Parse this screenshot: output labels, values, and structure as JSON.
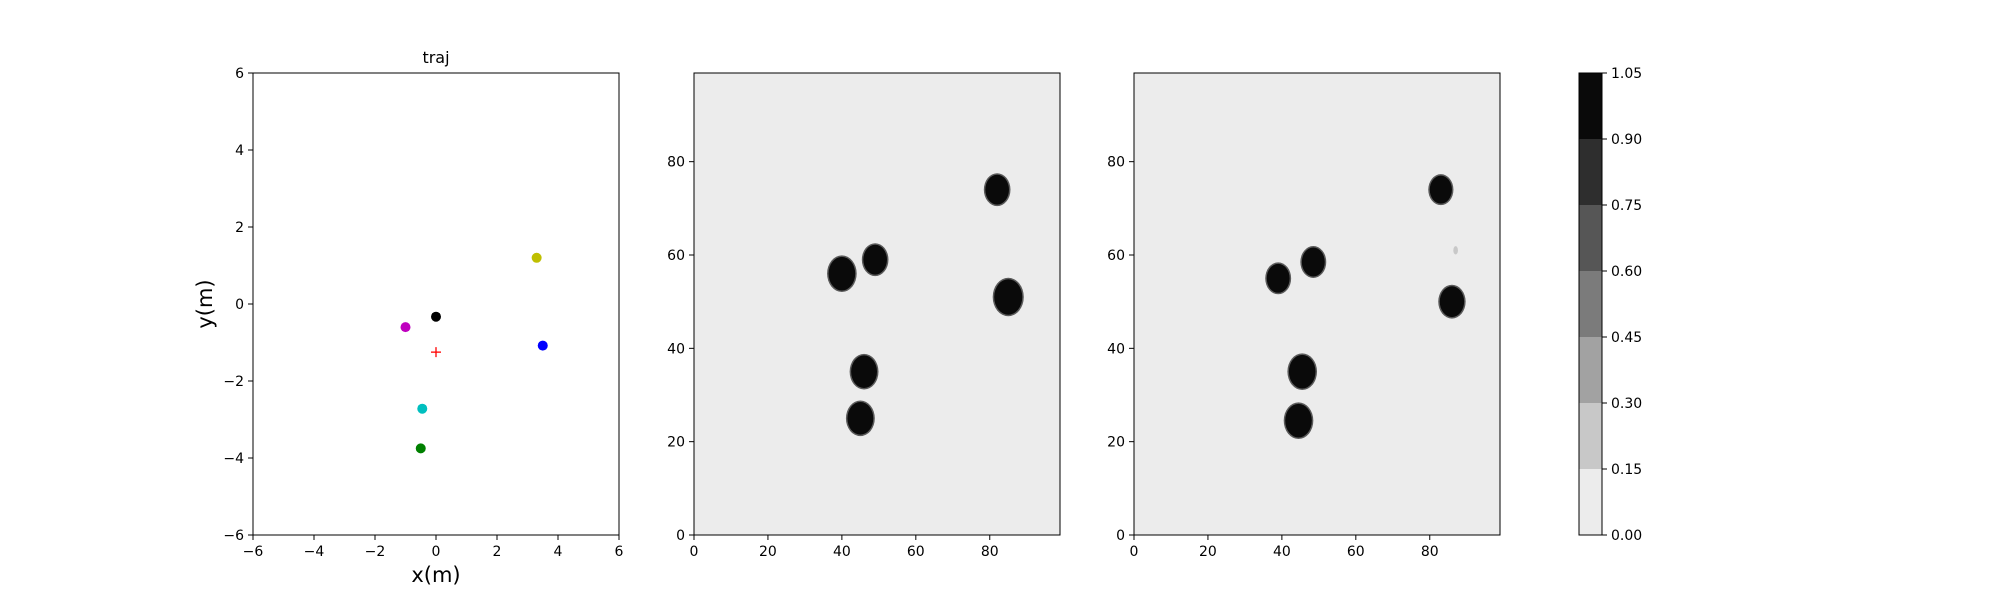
{
  "chart_data": [
    {
      "type": "scatter",
      "title": "traj",
      "xlabel": "x(m)",
      "ylabel": "y(m)",
      "xlim": [
        -6,
        6
      ],
      "ylim": [
        -6,
        6
      ],
      "xticks": [
        "−6",
        "−4",
        "−2",
        "0",
        "2",
        "4",
        "6"
      ],
      "yticks": [
        "−6",
        "−4",
        "−2",
        "0",
        "2",
        "4",
        "6"
      ],
      "grid": false,
      "points": [
        {
          "x": 3.3,
          "y": 1.2,
          "color": "#bfbf00",
          "marker": "circle"
        },
        {
          "x": 0.0,
          "y": -0.33,
          "color": "#000000",
          "marker": "circle"
        },
        {
          "x": -1.0,
          "y": -0.6,
          "color": "#bf00bf",
          "marker": "circle"
        },
        {
          "x": 3.5,
          "y": -1.08,
          "color": "#0000ff",
          "marker": "circle"
        },
        {
          "x": -0.45,
          "y": -2.72,
          "color": "#00bfbf",
          "marker": "circle"
        },
        {
          "x": -0.5,
          "y": -3.75,
          "color": "#008000",
          "marker": "circle"
        }
      ],
      "crosses": [
        {
          "x": 0.0,
          "y": -1.25,
          "color": "#ff0000",
          "marker": "plus"
        }
      ]
    },
    {
      "type": "heatmap",
      "xlim": [
        0,
        99
      ],
      "ylim": [
        0,
        99
      ],
      "xticks": [
        "0",
        "20",
        "40",
        "60",
        "80"
      ],
      "yticks": [
        "0",
        "20",
        "40",
        "60",
        "80"
      ],
      "background_value": 0.0,
      "blobs": [
        {
          "x": 40,
          "y": 56,
          "r": 3.6,
          "value": 1.0
        },
        {
          "x": 49,
          "y": 59,
          "r": 3.2,
          "value": 1.0
        },
        {
          "x": 82,
          "y": 74,
          "r": 3.2,
          "value": 1.0
        },
        {
          "x": 85,
          "y": 51,
          "r": 3.8,
          "value": 1.0
        },
        {
          "x": 46,
          "y": 35,
          "r": 3.5,
          "value": 1.0
        },
        {
          "x": 45,
          "y": 25,
          "r": 3.5,
          "value": 1.0
        }
      ]
    },
    {
      "type": "heatmap",
      "xlim": [
        0,
        99
      ],
      "ylim": [
        0,
        99
      ],
      "xticks": [
        "0",
        "20",
        "40",
        "60",
        "80"
      ],
      "yticks": [
        "0",
        "20",
        "40",
        "60",
        "80"
      ],
      "background_value": 0.0,
      "blobs": [
        {
          "x": 39,
          "y": 55,
          "r": 3.1,
          "value": 1.0
        },
        {
          "x": 48.5,
          "y": 58.5,
          "r": 3.1,
          "value": 1.0
        },
        {
          "x": 83,
          "y": 74,
          "r": 3.0,
          "value": 1.0
        },
        {
          "x": 86,
          "y": 50,
          "r": 3.3,
          "value": 1.0
        },
        {
          "x": 45.5,
          "y": 35,
          "r": 3.6,
          "value": 1.0
        },
        {
          "x": 44.5,
          "y": 24.5,
          "r": 3.6,
          "value": 1.0
        },
        {
          "x": 87,
          "y": 61,
          "r": 0.9,
          "value": 0.2
        }
      ]
    },
    {
      "type": "colorbar",
      "levels": [
        0.0,
        0.15,
        0.3,
        0.45,
        0.6,
        0.75,
        0.9,
        1.05
      ],
      "level_labels": [
        "0.00",
        "0.15",
        "0.30",
        "0.45",
        "0.60",
        "0.75",
        "0.90",
        "1.05"
      ],
      "colors": [
        "#ececec",
        "#c8c8c8",
        "#a2a2a2",
        "#7b7b7b",
        "#565656",
        "#2e2e2e",
        "#0a0a0a"
      ]
    }
  ]
}
